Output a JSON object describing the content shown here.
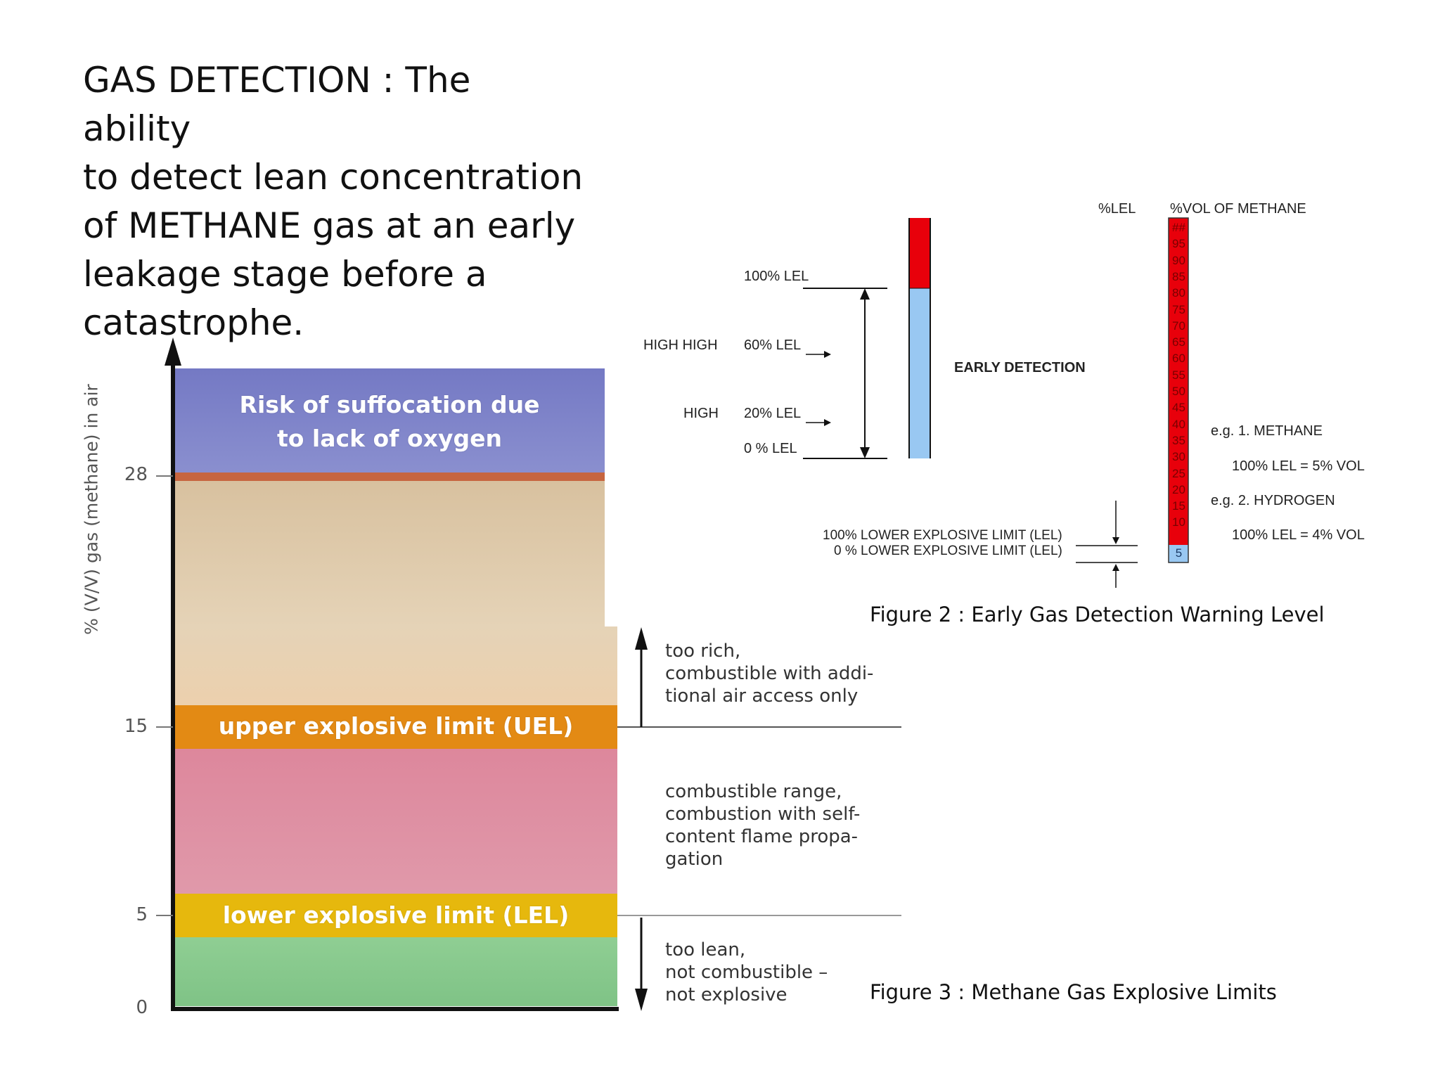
{
  "slide": {
    "title": "GAS DETECTION : The ability\nto detect lean concentration\nof METHANE gas at an early\nleakage stage before a\ncatastrophe.",
    "figure2_caption": "Figure 2 : Early Gas Detection Warning Level",
    "figure3_caption": "Figure 3 : Methane Gas Explosive Limits"
  },
  "figure2": {
    "levels": {
      "lel100": "100% LEL",
      "high_high": "HIGH HIGH",
      "lel60": "60% LEL",
      "high": "HIGH",
      "lel20": "20% LEL",
      "lel0": "0 % LEL"
    },
    "early_detection": "EARLY DETECTION",
    "col_header_lel": "%LEL",
    "col_header_vol": "%VOL OF METHANE",
    "column_values": [
      "##",
      "95",
      "90",
      "85",
      "80",
      "75",
      "70",
      "65",
      "60",
      "55",
      "50",
      "45",
      "40",
      "35",
      "30",
      "25",
      "20",
      "15",
      "10",
      "5"
    ],
    "example1": "e.g. 1. METHANE",
    "example1_value": "100% LEL = 5% VOL",
    "example2": "e.g. 2. HYDROGEN",
    "example2_value": "100% LEL = 4% VOL",
    "limit_100": "100% LOWER EXPLOSIVE LIMIT (LEL)",
    "limit_0": "0 % LOWER EXPLOSIVE LIMIT (LEL)",
    "colors": {
      "danger": "#e8000b",
      "safe": "#99c8f2"
    }
  },
  "figure3": {
    "y_axis_label": "% (V/V) gas (methane) in air",
    "ticks": [
      "28",
      "15",
      "5",
      "0"
    ],
    "bands": {
      "suffocation": "Risk of suffocation due\nto lack of oxygen",
      "uel": "upper explosive limit (UEL)",
      "lel": "lower explosive limit (LEL)"
    },
    "notes": {
      "too_rich": "too rich,\ncombustible with addi-\ntional air access only",
      "combustible": "combustible range,\ncombustion with self-\ncontent flame propa-\ngation",
      "too_lean": "too lean,\nnot combustible –\nnot explosive"
    },
    "colors": {
      "suffocation": "#7a7ec6",
      "rich": "#dcc6a4",
      "uel": "#e38a14",
      "combustible": "#dd8ba0",
      "lel": "#e6b80d",
      "lean": "#8fce93"
    }
  }
}
